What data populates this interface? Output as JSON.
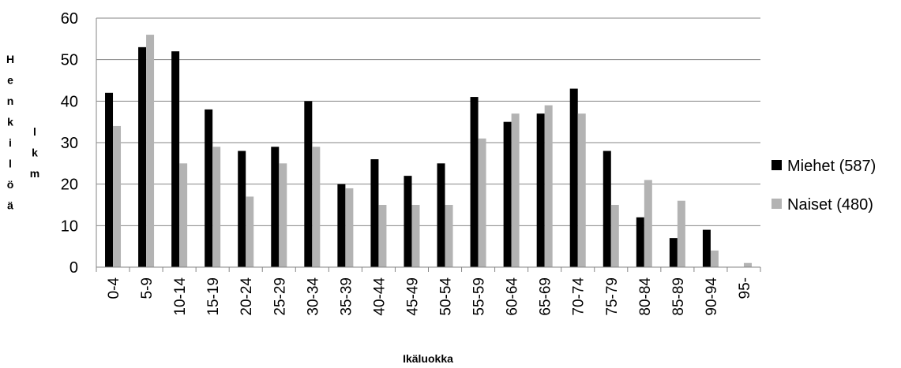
{
  "chart_data": {
    "type": "bar",
    "categories": [
      "0-4",
      "5-9",
      "10-14",
      "15-19",
      "20-24",
      "25-29",
      "30-34",
      "35-39",
      "40-44",
      "45-49",
      "50-54",
      "55-59",
      "60-64",
      "65-69",
      "70-74",
      "75-79",
      "80-84",
      "85-89",
      "90-94",
      "95-"
    ],
    "series": [
      {
        "name": "Miehet (587)",
        "color": "#000000",
        "values": [
          42,
          53,
          52,
          38,
          28,
          29,
          40,
          20,
          26,
          22,
          25,
          41,
          35,
          37,
          43,
          28,
          12,
          7,
          9,
          0
        ]
      },
      {
        "name": "Naiset (480)",
        "color": "#b3b3b3",
        "values": [
          34,
          56,
          25,
          29,
          17,
          25,
          29,
          19,
          15,
          15,
          15,
          31,
          37,
          39,
          37,
          15,
          21,
          16,
          4,
          1
        ]
      }
    ],
    "title": "",
    "xlabel": "Ikäluokka",
    "ylabel_col1": [
      "H",
      "e",
      "n",
      "k",
      "i",
      "l",
      "ö",
      "ä"
    ],
    "ylabel_col2": [
      "l",
      "k",
      "m"
    ],
    "ylim": [
      0,
      60
    ],
    "yticks": [
      0,
      10,
      20,
      30,
      40,
      50,
      60
    ],
    "grid": true,
    "legend_position": "right"
  }
}
